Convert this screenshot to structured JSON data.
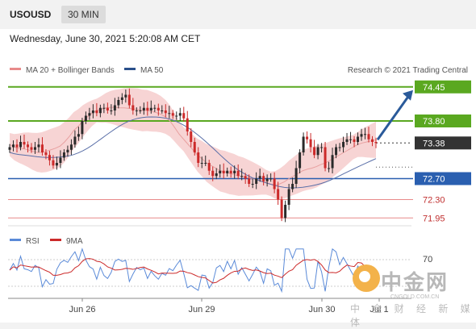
{
  "header": {
    "symbol": "USOUSD",
    "timeframe": "30 MIN"
  },
  "datetime": "Wednesday, June 30, 2021 5:20:08 AM CET",
  "legend": {
    "ma20_bb": "MA 20 + Bollinger Bands",
    "ma50": "MA 50",
    "rsi": "RSI",
    "ma9": "9MA",
    "credit": "Research © 2021 Trading Central"
  },
  "watermark": {
    "brand": "中金网",
    "site": "CNGOLD.COM.CN",
    "tagline": "中 金 财 经 新 媒 体"
  },
  "colors": {
    "bull": "#2a2a2a",
    "bear": "#cc2a2a",
    "bb_fill": "#f6cccc",
    "ma20": "#e8a0a0",
    "ma50": "#5a6fa8",
    "green_level": "#5aa820",
    "blue_level": "#2a5fb0",
    "red_level": "#e88a8a",
    "arrow": "#2a5a9a",
    "rsi": "#5a8ad8",
    "rsi_ma": "#cc2a2a"
  },
  "chart_data": {
    "type": "candlestick",
    "x_ticks": [
      "Jun 26",
      "Jun 29",
      "Jun 30",
      "Jul 1"
    ],
    "ylim": [
      71.8,
      74.6
    ],
    "last_price": 73.38,
    "levels": [
      {
        "label": "74.45",
        "value": 74.45,
        "kind": "resistance",
        "color": "green"
      },
      {
        "label": "73.80",
        "value": 73.8,
        "kind": "resistance",
        "color": "green"
      },
      {
        "label": "73.38",
        "value": 73.38,
        "kind": "current",
        "color": "black"
      },
      {
        "label": "72.70",
        "value": 72.7,
        "kind": "pivot",
        "color": "blue"
      },
      {
        "label": "72.30",
        "value": 72.3,
        "kind": "support",
        "color": "red"
      },
      {
        "label": "71.95",
        "value": 71.95,
        "kind": "support",
        "color": "red"
      }
    ],
    "forecast_arrow": {
      "from": 73.38,
      "to": 74.45
    },
    "close": [
      73.3,
      73.35,
      73.3,
      73.4,
      73.35,
      73.3,
      73.25,
      73.3,
      73.35,
      73.2,
      73.15,
      73.05,
      72.95,
      73.0,
      73.1,
      73.2,
      73.25,
      73.35,
      73.5,
      73.55,
      73.8,
      73.9,
      73.95,
      74.0,
      73.95,
      74.05,
      74.05,
      74.0,
      74.0,
      74.1,
      74.2,
      74.25,
      74.3,
      74.1,
      74.0,
      74.0,
      74.0,
      74.05,
      74.0,
      74.05,
      74.05,
      74.0,
      74.0,
      73.95,
      73.95,
      73.9,
      73.9,
      73.95,
      73.85,
      73.6,
      73.4,
      73.2,
      73.0,
      73.0,
      73.0,
      72.85,
      72.75,
      72.8,
      72.85,
      72.8,
      72.85,
      72.8,
      72.85,
      72.75,
      72.75,
      72.7,
      72.6,
      72.6,
      72.7,
      72.75,
      72.65,
      72.7,
      72.7,
      72.5,
      72.3,
      71.95,
      72.2,
      72.5,
      72.6,
      72.9,
      73.2,
      73.5,
      73.45,
      73.3,
      73.15,
      73.3,
      73.3,
      72.9,
      72.9,
      73.15,
      73.3,
      73.3,
      73.4,
      73.45,
      73.45,
      73.4,
      73.5,
      73.55,
      73.55,
      73.45,
      73.4,
      73.38
    ],
    "ma20": [
      73.35,
      73.3,
      73.28,
      73.27,
      73.25,
      73.22,
      73.2,
      73.2,
      73.22,
      73.25,
      73.28,
      73.32,
      73.4,
      73.5,
      73.62,
      73.7,
      73.8,
      73.88,
      73.95,
      74.0,
      74.02,
      74.05,
      74.06,
      74.06,
      74.05,
      74.05,
      74.04,
      74.03,
      74.02,
      74.0,
      74.0,
      73.98,
      73.96,
      73.93,
      73.88,
      73.8,
      73.68,
      73.55,
      73.45,
      73.35,
      73.25,
      73.15,
      73.08,
      73.0,
      72.95,
      72.9,
      72.85,
      72.83,
      72.8,
      72.78,
      72.75,
      72.74,
      72.72,
      72.7,
      72.68,
      72.66,
      72.63,
      72.6,
      72.58,
      72.6,
      72.64,
      72.7,
      72.75,
      72.8,
      72.85,
      72.88,
      72.9,
      72.93,
      72.97,
      73.0,
      73.05,
      73.1,
      73.15,
      73.2,
      73.25,
      73.3,
      73.35,
      73.38,
      73.4,
      73.42,
      73.44
    ],
    "rsi_axis_label": "70"
  }
}
